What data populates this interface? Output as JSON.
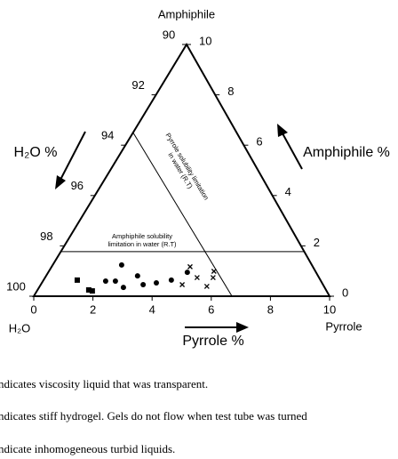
{
  "chart_data": {
    "type": "ternary",
    "top_label": "Amphiphile",
    "left_label": "H₂O",
    "right_label": "Pyrrole",
    "x_axis_title": "Pyrrole %",
    "y_axis_title": "Amphiphile %",
    "h2o_axis_title": "H₂O %",
    "xlim": [
      0,
      10
    ],
    "xticks": [
      0,
      2,
      4,
      6,
      8,
      10
    ],
    "ylim": [
      0,
      10
    ],
    "yticks": [
      0,
      2,
      4,
      6,
      8,
      10
    ],
    "h2o_lim": [
      100,
      90
    ],
    "h2o_ticks": [
      90,
      92,
      94,
      96,
      98,
      100
    ],
    "annotations": [
      {
        "lines": [
          "Pyrrole solubility limitation",
          "in water (R.T)"
        ]
      },
      {
        "lines": [
          "Amphiphile solubility",
          "limitation in water (R.T)"
        ]
      }
    ],
    "limit_lines": [
      {
        "x": [
          0,
          6.7
        ],
        "values": [
          6.5,
          0
        ]
      },
      {
        "x": [
          0,
          8.23
        ],
        "values": [
          1.77,
          1.77
        ]
      }
    ],
    "series": [
      {
        "marker": "square",
        "color": "#000000",
        "x": [
          1.14,
          1.73,
          1.87
        ],
        "values": [
          0.64,
          0.25,
          0.21
        ]
      },
      {
        "marker": "circle",
        "color": "#000000",
        "x": [
          2.33,
          2.12,
          2.45,
          2.85,
          3.09,
          3.46,
          3.87,
          4.32,
          4.7
        ],
        "values": [
          1.24,
          0.6,
          0.6,
          0.35,
          0.81,
          0.46,
          0.53,
          0.64,
          0.95
        ]
      },
      {
        "marker": "cross",
        "color": "#000000",
        "x": [
          4.68,
          4.78,
          5.14,
          5.65,
          5.68,
          5.58
        ],
        "values": [
          1.17,
          0.46,
          0.74,
          0.39,
          0.74,
          0.99
        ]
      }
    ],
    "captions": [
      "ndicates viscosity liquid that was transparent.",
      "ndicates stiff hydrogel. Gels do not flow when test tube was turned",
      "ndicate inhomogeneous turbid liquids."
    ]
  }
}
